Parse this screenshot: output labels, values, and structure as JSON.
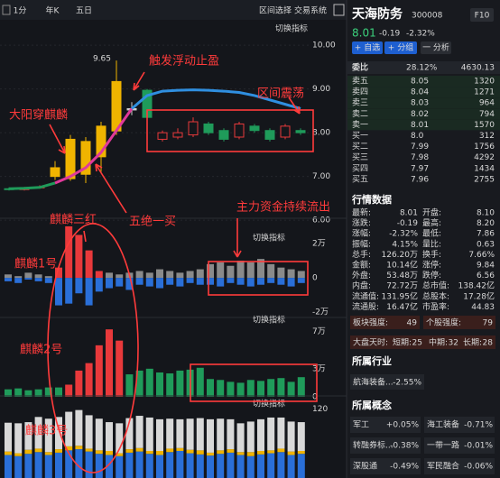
{
  "toolbar": {
    "periods": [
      "1分",
      "年K",
      "五日"
    ],
    "tools": [
      "区间选择",
      "交易系统"
    ]
  },
  "chart": {
    "switch_label": "切换指标",
    "price_panel": {
      "ylim": [
        5.88,
        10.25
      ],
      "yticks": [
        {
          "value": 10,
          "label": "10.00"
        },
        {
          "value": 9,
          "label": "9.00"
        },
        {
          "value": 8,
          "label": "8.00"
        },
        {
          "value": 7,
          "label": "7.00"
        },
        {
          "value": 6,
          "label": "6.00"
        }
      ],
      "hollow_color": "#e8393b",
      "candles": {
        "open": [
          6.72,
          6.7,
          6.74,
          7.0,
          6.95,
          7.05,
          7.45,
          8.04,
          8.55,
          8.97,
          7.85,
          7.9,
          7.95,
          8.2,
          8.05,
          7.9,
          8.15,
          8.05,
          7.9,
          8.05
        ],
        "close": [
          6.7,
          6.74,
          6.76,
          7.2,
          7.85,
          7.8,
          8.15,
          9.17,
          8.52,
          8.35,
          8.0,
          8.0,
          8.25,
          8.0,
          7.85,
          8.2,
          8.05,
          7.85,
          8.15,
          8.0
        ],
        "high": [
          6.75,
          6.76,
          6.8,
          7.35,
          7.95,
          7.9,
          8.25,
          9.65,
          8.7,
          9.0,
          8.05,
          8.1,
          8.35,
          8.25,
          8.1,
          8.25,
          8.2,
          8.1,
          8.2,
          8.1
        ],
        "low": [
          6.68,
          6.68,
          6.72,
          6.92,
          6.9,
          6.85,
          7.1,
          7.95,
          8.4,
          8.3,
          7.8,
          7.85,
          7.9,
          7.95,
          7.8,
          7.85,
          8.0,
          7.8,
          7.85,
          7.95
        ],
        "colors": [
          "#1f9b5a",
          "#e8393b",
          "#e8393b",
          "#f0b400",
          "#f0b400",
          "#f0b400",
          "#f0b400",
          "#f0b400",
          "#cfcfcf",
          "#1f9b5a",
          "#e8393b",
          "#e8393b",
          "#e8393b",
          "#1f9b5a",
          "#1f9b5a",
          "#e8393b",
          "#1f9b5a",
          "#1f9b5a",
          "#e8393b",
          "#1f9b5a"
        ]
      },
      "lines": [
        {
          "color": "#1f9b5a",
          "values": [
            6.72,
            6.73,
            6.75,
            6.85,
            null,
            null,
            null,
            null,
            null,
            null,
            null,
            null,
            null,
            null,
            null,
            null,
            null,
            null,
            null,
            null
          ]
        },
        {
          "color": "#e0399a",
          "values": [
            null,
            null,
            null,
            6.85,
            7.0,
            7.2,
            7.55,
            8.05,
            8.55,
            null,
            null,
            null,
            null,
            null,
            null,
            null,
            null,
            null,
            null,
            null
          ]
        },
        {
          "color": "#2f8fe0",
          "values": [
            null,
            null,
            null,
            null,
            null,
            null,
            null,
            null,
            8.55,
            8.85,
            8.95,
            8.97,
            8.98,
            8.97,
            8.95,
            8.92,
            8.85,
            8.75,
            8.65,
            8.55
          ]
        }
      ]
    },
    "flow_panel": {
      "ylim": [
        -2.2,
        3.05
      ],
      "yticks": [
        {
          "value": 2,
          "label": "2万"
        },
        0,
        {
          "value": -2,
          "label": "-2万"
        }
      ],
      "series": [
        {
          "color": "#e8393b",
          "values": [
            null,
            null,
            null,
            null,
            null,
            0.6,
            3.0,
            2.5,
            1.6,
            0.4,
            null,
            null,
            null,
            null,
            null,
            null,
            null,
            null,
            null,
            null,
            null,
            null,
            null,
            null,
            null,
            null,
            null,
            null,
            null,
            null
          ]
        },
        {
          "color": "#8a8a8a",
          "values": [
            0.2,
            0.1,
            0.3,
            0.2,
            0.1,
            null,
            null,
            null,
            null,
            null,
            0.3,
            0.2,
            0.3,
            0.4,
            0.3,
            0.5,
            0.4,
            0.3,
            0.4,
            0.5,
            0.8,
            0.9,
            0.7,
            1.0,
            0.9,
            1.1,
            0.8,
            0.6,
            0.5,
            0.4
          ]
        },
        {
          "color": "#2a6fd8",
          "values": [
            -0.2,
            -0.3,
            -0.1,
            -0.2,
            -0.3,
            -1.6,
            -1.5,
            -0.9,
            -1.6,
            -0.8,
            -0.6,
            -0.5,
            -0.7,
            -0.4,
            -0.5,
            -0.6,
            -0.4,
            -0.5,
            -0.3,
            -0.4,
            -0.4,
            -0.5,
            -0.3,
            -0.4,
            -0.5,
            -0.4,
            -0.3,
            -0.4,
            -0.5,
            -0.3
          ]
        }
      ]
    },
    "volume_panel": {
      "ylim": [
        0,
        7.7
      ],
      "yticks": [
        {
          "value": 7,
          "label": "7万"
        },
        {
          "value": 3,
          "label": "3万"
        },
        0
      ],
      "series": [
        {
          "color": "#1f9b5a",
          "values": [
            0.8,
            0.9,
            0.7,
            0.8,
            1.0,
            1.0,
            null,
            null,
            null,
            null,
            null,
            null,
            2.4,
            2.8,
            3.0,
            2.6,
            2.5,
            2.8,
            2.9,
            3.1,
            1.9,
            1.8,
            1.6,
            1.5,
            1.8,
            1.7,
            1.9,
            2.0,
            1.6,
            2.1
          ]
        },
        {
          "color": "#e8393b",
          "values": [
            null,
            null,
            null,
            null,
            null,
            null,
            1.3,
            2.8,
            3.6,
            5.5,
            7.2,
            6.0,
            null,
            null,
            null,
            null,
            null,
            null,
            null,
            null,
            null,
            null,
            null,
            null,
            null,
            null,
            null,
            null,
            null,
            null
          ]
        }
      ]
    },
    "third_panel": {
      "ylim": [
        0,
        130
      ],
      "yticks": [
        120
      ],
      "series": [
        {
          "color": "#2a6fd8",
          "values": [
            40,
            38,
            42,
            45,
            40,
            44,
            48,
            50,
            46,
            42,
            40,
            38,
            44,
            46,
            42,
            40,
            45,
            47,
            43,
            41,
            39,
            42,
            44,
            40,
            38,
            41,
            43,
            45,
            40,
            42
          ]
        },
        {
          "color": "#f0b400",
          "values": [
            6,
            5,
            7,
            6,
            5,
            6,
            7,
            6,
            5,
            6,
            7,
            5,
            6,
            6,
            5,
            7,
            6,
            5,
            6,
            7,
            5,
            6,
            6,
            5,
            7,
            6,
            5,
            6,
            6,
            5
          ]
        },
        {
          "color": "#d8d8d8",
          "values": [
            50,
            52,
            48,
            55,
            58,
            56,
            60,
            62,
            58,
            55,
            50,
            52,
            54,
            56,
            58,
            55,
            52,
            50,
            54,
            56,
            58,
            55,
            52,
            50,
            53,
            55,
            57,
            54,
            52,
            50
          ]
        }
      ]
    },
    "annotations": [
      "触发浮动止盈",
      "区间震荡",
      "大阳穿麒麟",
      "五绝一买",
      "主力资金持续流出",
      "麒麟三红",
      "麒麟1号",
      "麒麟2号",
      "麒麟3号"
    ]
  },
  "sidebar": {
    "name": "天海防务",
    "code": "300008",
    "f10": "F10",
    "price": "8.01",
    "change": "-0.19",
    "change_pct": "-2.32%",
    "buttons": [
      "+ 自选",
      "+ 分组",
      "一 分析"
    ],
    "ratio": {
      "label": "委比",
      "pct": "28.12%",
      "diff": "4630.13"
    },
    "book": [
      [
        "卖五",
        "8.05",
        "1320"
      ],
      [
        "卖四",
        "8.04",
        "1271"
      ],
      [
        "卖三",
        "8.03",
        "964"
      ],
      [
        "卖二",
        "8.02",
        "794"
      ],
      [
        "卖一",
        "8.01",
        "1570"
      ],
      [
        "买一",
        "8.0",
        "312"
      ],
      [
        "买二",
        "7.99",
        "1756"
      ],
      [
        "买三",
        "7.98",
        "4292"
      ],
      [
        "买四",
        "7.97",
        "1434"
      ],
      [
        "买五",
        "7.96",
        "2755"
      ]
    ],
    "stats_title": "行情数据",
    "stats": [
      [
        "最新:",
        "8.01",
        "开盘:",
        "8.10"
      ],
      [
        "涨跌:",
        "-0.19",
        "最高:",
        "8.20"
      ],
      [
        "涨幅:",
        "-2.32%",
        "最低:",
        "7.86"
      ],
      [
        "振幅:",
        "4.15%",
        "量比:",
        "0.63"
      ],
      [
        "总手:",
        "126.20万",
        "换手:",
        "7.66%"
      ],
      [
        "金额:",
        "10.14亿",
        "涨停:",
        "9.84"
      ],
      [
        "外盘:",
        "53.48万",
        "跌停:",
        "6.56"
      ],
      [
        "内盘:",
        "72.72万",
        "总市值:",
        "138.42亿"
      ],
      [
        "流通值:",
        "131.95亿",
        "总股本:",
        "17.28亿"
      ],
      [
        "流通股:",
        "16.47亿",
        "市盈率:",
        "44.83"
      ]
    ],
    "stat_colors": [
      [
        "#3bd17c",
        "#e8393b"
      ],
      [
        "#3bd17c",
        "#e8393b"
      ],
      [
        "#3bd17c",
        "#3bd17c"
      ],
      [
        "#dddddd",
        "#dddddd"
      ],
      [
        "#dddddd",
        "#dddddd"
      ],
      [
        "#dddddd",
        "#e8393b"
      ],
      [
        "#e8393b",
        "#3bd17c"
      ],
      [
        "#3bd17c",
        "#dddddd"
      ],
      [
        "#dddddd",
        "#dddddd"
      ],
      [
        "#dddddd",
        "#dddddd"
      ]
    ],
    "strength": [
      [
        "板块强度:",
        "49"
      ],
      [
        "个股强度:",
        "79"
      ]
    ],
    "market": {
      "label": "大盘天时:",
      "items": [
        [
          "短期:",
          "25"
        ],
        [
          "中期:",
          "32"
        ],
        [
          "长期:",
          "28"
        ]
      ]
    },
    "industry_title": "所属行业",
    "industry": [
      "航海装备...",
      "-2.55%"
    ],
    "concept_title": "所属概念",
    "concepts": [
      [
        "军工",
        "+0.05%"
      ],
      [
        "海工装备",
        "-0.71%"
      ],
      [
        "转融券标...",
        "-0.38%"
      ],
      [
        "一带一路",
        "-0.01%"
      ],
      [
        "深股通",
        "-0.49%"
      ],
      [
        "军民融合",
        "-0.06%"
      ]
    ]
  }
}
